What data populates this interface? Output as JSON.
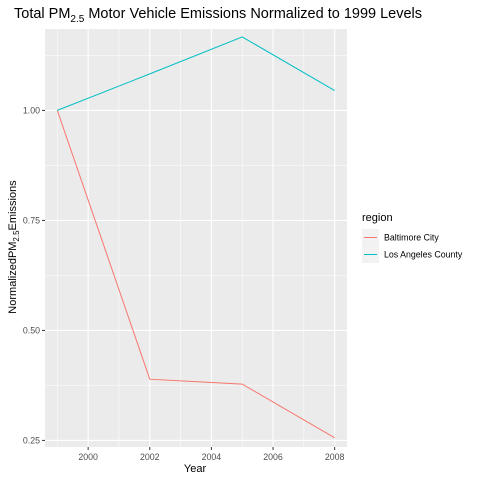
{
  "chart_data": {
    "type": "line",
    "title": {
      "prefix": "Total PM",
      "subscript": "2.5",
      "suffix": " Motor Vehicle Emissions Normalized to 1999 Levels"
    },
    "xlabel": "Year",
    "ylabel": {
      "prefix": "NormalizedPM",
      "subscript": "2.5",
      "suffix": "Emissions"
    },
    "xlim": [
      1998.6,
      2008.4
    ],
    "ylim": [
      0.235,
      1.185
    ],
    "x_ticks": [
      2000,
      2002,
      2004,
      2006,
      2008
    ],
    "x_tick_labels": [
      "2000",
      "2002",
      "2004",
      "2006",
      "2008"
    ],
    "y_ticks": [
      0.25,
      0.5,
      0.75,
      1.0
    ],
    "y_tick_labels": [
      "0.25",
      "0.50",
      "0.75",
      "1.00"
    ],
    "grid": true,
    "legend": {
      "title": "region",
      "placement": "right"
    },
    "x": [
      1999,
      2002,
      2005,
      2008
    ],
    "series": [
      {
        "name": "Baltimore City",
        "color": "#F8766D",
        "values": [
          1.0,
          0.389,
          0.378,
          0.256
        ]
      },
      {
        "name": "Los Angeles County",
        "color": "#00BFC4",
        "values": [
          1.0,
          1.083,
          1.167,
          1.045
        ]
      }
    ],
    "panel_background": "#EBEBEB",
    "gridline_color": "#FFFFFF"
  }
}
